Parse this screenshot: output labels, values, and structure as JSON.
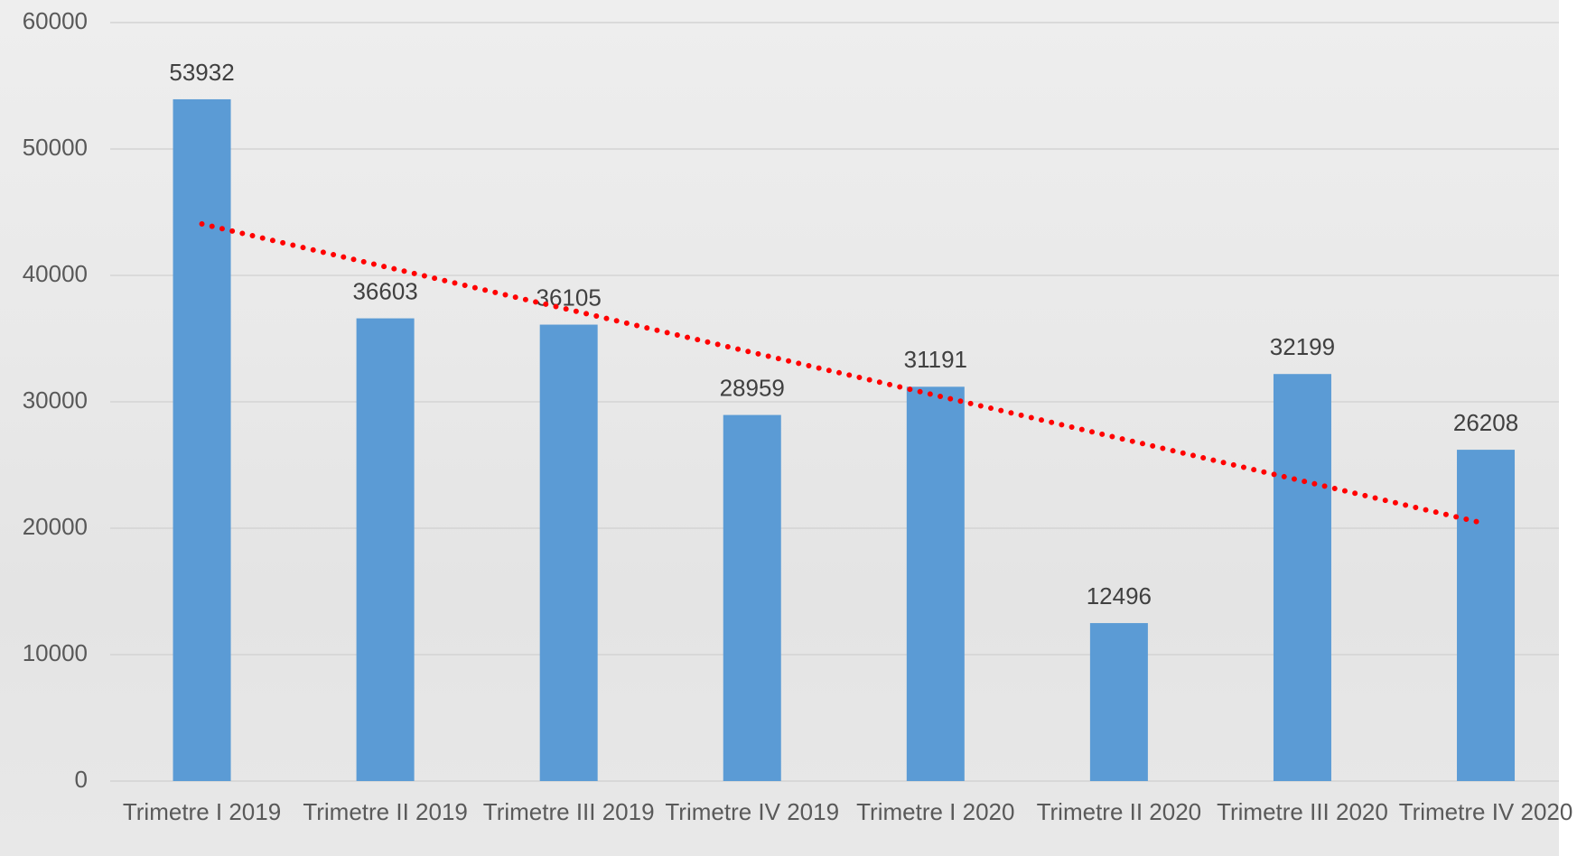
{
  "chart_data": {
    "type": "bar",
    "categories": [
      "Trimetre I 2019",
      "Trimetre II 2019",
      "Trimetre III 2019",
      "Trimetre IV 2019",
      "Trimetre I 2020",
      "Trimetre II 2020",
      "Trimetre III 2020",
      "Trimetre IV 2020"
    ],
    "values": [
      53932,
      36603,
      36105,
      28959,
      31191,
      12496,
      32199,
      26208
    ],
    "color": "#5b9bd5",
    "ylim": [
      0,
      60000
    ],
    "yticks": [
      0,
      10000,
      20000,
      30000,
      40000,
      50000,
      60000
    ],
    "grid": true,
    "trendline": "linear",
    "trendline_color": "#ff0000"
  }
}
